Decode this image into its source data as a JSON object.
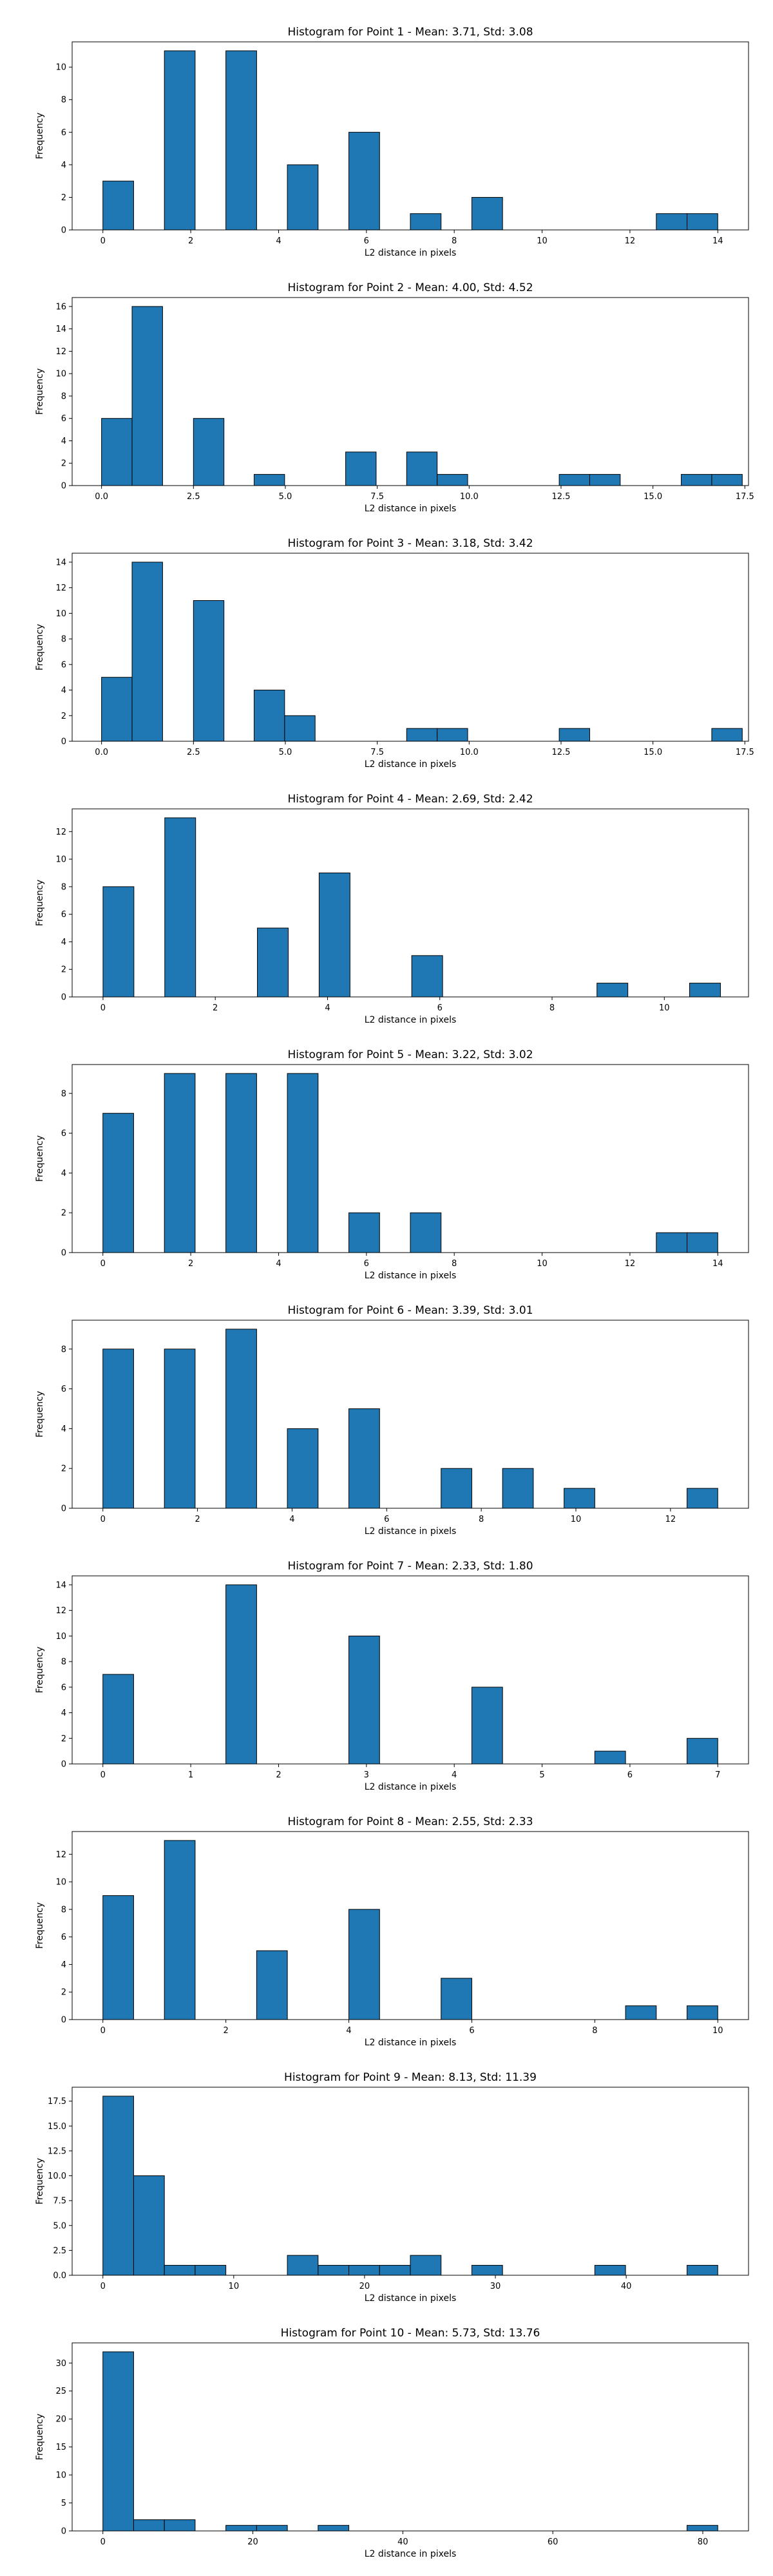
{
  "chart_data": [
    {
      "type": "bar",
      "title": "Histogram for Point 1 - Mean: 3.71, Std: 3.08",
      "xlabel": "L2 distance in pixels",
      "ylabel": "Frequency",
      "xlim": [
        -0.7,
        14.7
      ],
      "ylim": [
        0,
        11.55
      ],
      "xticks": [
        0,
        2,
        4,
        6,
        8,
        10,
        12,
        14
      ],
      "xtick_labels": [
        "0",
        "2",
        "4",
        "6",
        "8",
        "10",
        "12",
        "14"
      ],
      "yticks": [
        0,
        2,
        4,
        6,
        8,
        10
      ],
      "ytick_labels": [
        "0",
        "2",
        "4",
        "6",
        "8",
        "10"
      ],
      "bins": [
        [
          0,
          0.7,
          3
        ],
        [
          1.4,
          2.1,
          11
        ],
        [
          2.8,
          3.5,
          11
        ],
        [
          4.2,
          4.9,
          4
        ],
        [
          5.6,
          6.3,
          6
        ],
        [
          7.0,
          7.7,
          1
        ],
        [
          8.4,
          9.1,
          2
        ],
        [
          12.6,
          13.3,
          1
        ],
        [
          13.3,
          14.0,
          1
        ]
      ]
    },
    {
      "type": "bar",
      "title": "Histogram for Point 2 - Mean: 4.00, Std: 4.52",
      "xlabel": "L2 distance in pixels",
      "ylabel": "Frequency",
      "xlim": [
        -0.8,
        17.6
      ],
      "ylim": [
        0,
        16.8
      ],
      "xticks": [
        0,
        2.5,
        5,
        7.5,
        10,
        12.5,
        15,
        17.5
      ],
      "xtick_labels": [
        "0.0",
        "2.5",
        "5.0",
        "7.5",
        "10.0",
        "12.5",
        "15.0",
        "17.5"
      ],
      "yticks": [
        0,
        2,
        4,
        6,
        8,
        10,
        12,
        14,
        16
      ],
      "ytick_labels": [
        "0",
        "2",
        "4",
        "6",
        "8",
        "10",
        "12",
        "14",
        "16"
      ],
      "bins": [
        [
          0,
          0.83,
          6
        ],
        [
          0.83,
          1.66,
          16
        ],
        [
          2.5,
          3.33,
          6
        ],
        [
          4.15,
          4.98,
          1
        ],
        [
          6.64,
          7.47,
          3
        ],
        [
          8.3,
          9.13,
          3
        ],
        [
          9.13,
          9.96,
          1
        ],
        [
          12.45,
          13.28,
          1
        ],
        [
          13.28,
          14.11,
          1
        ],
        [
          15.77,
          16.6,
          1
        ],
        [
          16.6,
          17.43,
          1
        ]
      ]
    },
    {
      "type": "bar",
      "title": "Histogram for Point 3 - Mean: 3.18, Std: 3.42",
      "xlabel": "L2 distance in pixels",
      "ylabel": "Frequency",
      "xlim": [
        -0.8,
        17.6
      ],
      "ylim": [
        0,
        14.7
      ],
      "xticks": [
        0,
        2.5,
        5,
        7.5,
        10,
        12.5,
        15,
        17.5
      ],
      "xtick_labels": [
        "0.0",
        "2.5",
        "5.0",
        "7.5",
        "10.0",
        "12.5",
        "15.0",
        "17.5"
      ],
      "yticks": [
        0,
        2,
        4,
        6,
        8,
        10,
        12,
        14
      ],
      "ytick_labels": [
        "0",
        "2",
        "4",
        "6",
        "8",
        "10",
        "12",
        "14"
      ],
      "bins": [
        [
          0,
          0.83,
          5
        ],
        [
          0.83,
          1.66,
          14
        ],
        [
          2.5,
          3.33,
          11
        ],
        [
          4.15,
          4.98,
          4
        ],
        [
          4.98,
          5.81,
          2
        ],
        [
          8.3,
          9.13,
          1
        ],
        [
          9.13,
          9.96,
          1
        ],
        [
          12.45,
          13.28,
          1
        ],
        [
          16.6,
          17.43,
          1
        ]
      ]
    },
    {
      "type": "bar",
      "title": "Histogram for Point 4 - Mean: 2.69, Std: 2.42",
      "xlabel": "L2 distance in pixels",
      "ylabel": "Frequency",
      "xlim": [
        -0.55,
        11.5
      ],
      "ylim": [
        0,
        13.65
      ],
      "xticks": [
        0,
        2,
        4,
        6,
        8,
        10
      ],
      "xtick_labels": [
        "0",
        "2",
        "4",
        "6",
        "8",
        "10"
      ],
      "yticks": [
        0,
        2,
        4,
        6,
        8,
        10,
        12
      ],
      "ytick_labels": [
        "0",
        "2",
        "4",
        "6",
        "8",
        "10",
        "12"
      ],
      "bins": [
        [
          0,
          0.55,
          8
        ],
        [
          1.1,
          1.65,
          13
        ],
        [
          2.75,
          3.3,
          5
        ],
        [
          3.85,
          4.4,
          9
        ],
        [
          5.5,
          6.05,
          3
        ],
        [
          8.8,
          9.35,
          1
        ],
        [
          10.45,
          11.0,
          1
        ]
      ]
    },
    {
      "type": "bar",
      "title": "Histogram for Point 5 - Mean: 3.22, Std: 3.02",
      "xlabel": "L2 distance in pixels",
      "ylabel": "Frequency",
      "xlim": [
        -0.7,
        14.7
      ],
      "ylim": [
        0,
        9.45
      ],
      "xticks": [
        0,
        2,
        4,
        6,
        8,
        10,
        12,
        14
      ],
      "xtick_labels": [
        "0",
        "2",
        "4",
        "6",
        "8",
        "10",
        "12",
        "14"
      ],
      "yticks": [
        0,
        2,
        4,
        6,
        8
      ],
      "ytick_labels": [
        "0",
        "2",
        "4",
        "6",
        "8"
      ],
      "bins": [
        [
          0,
          0.7,
          7
        ],
        [
          1.4,
          2.1,
          9
        ],
        [
          2.8,
          3.5,
          9
        ],
        [
          4.2,
          4.9,
          9
        ],
        [
          5.6,
          6.3,
          2
        ],
        [
          7.0,
          7.7,
          2
        ],
        [
          12.6,
          13.3,
          1
        ],
        [
          13.3,
          14.0,
          1
        ]
      ]
    },
    {
      "type": "bar",
      "title": "Histogram for Point 6 - Mean: 3.39, Std: 3.01",
      "xlabel": "L2 distance in pixels",
      "ylabel": "Frequency",
      "xlim": [
        -0.65,
        13.65
      ],
      "ylim": [
        0,
        9.45
      ],
      "xticks": [
        0,
        2,
        4,
        6,
        8,
        10,
        12
      ],
      "xtick_labels": [
        "0",
        "2",
        "4",
        "6",
        "8",
        "10",
        "12"
      ],
      "yticks": [
        0,
        2,
        4,
        6,
        8
      ],
      "ytick_labels": [
        "0",
        "2",
        "4",
        "6",
        "8"
      ],
      "bins": [
        [
          0,
          0.65,
          8
        ],
        [
          1.3,
          1.95,
          8
        ],
        [
          2.6,
          3.25,
          9
        ],
        [
          3.9,
          4.55,
          4
        ],
        [
          5.2,
          5.85,
          5
        ],
        [
          7.15,
          7.8,
          2
        ],
        [
          8.45,
          9.1,
          2
        ],
        [
          9.75,
          10.4,
          1
        ],
        [
          12.35,
          13.0,
          1
        ]
      ]
    },
    {
      "type": "bar",
      "title": "Histogram for Point 7 - Mean: 2.33, Std: 1.80",
      "xlabel": "L2 distance in pixels",
      "ylabel": "Frequency",
      "xlim": [
        -0.35,
        7.35
      ],
      "ylim": [
        0,
        14.7
      ],
      "xticks": [
        0,
        1,
        2,
        3,
        4,
        5,
        6,
        7
      ],
      "xtick_labels": [
        "0",
        "1",
        "2",
        "3",
        "4",
        "5",
        "6",
        "7"
      ],
      "yticks": [
        0,
        2,
        4,
        6,
        8,
        10,
        12,
        14
      ],
      "ytick_labels": [
        "0",
        "2",
        "4",
        "6",
        "8",
        "10",
        "12",
        "14"
      ],
      "bins": [
        [
          0,
          0.35,
          7
        ],
        [
          1.4,
          1.75,
          14
        ],
        [
          2.8,
          3.15,
          10
        ],
        [
          4.2,
          4.55,
          6
        ],
        [
          5.6,
          5.95,
          1
        ],
        [
          6.65,
          7.0,
          2
        ]
      ]
    },
    {
      "type": "bar",
      "title": "Histogram for Point 8 - Mean: 2.55, Std: 2.33",
      "xlabel": "L2 distance in pixels",
      "ylabel": "Frequency",
      "xlim": [
        -0.5,
        10.5
      ],
      "ylim": [
        0,
        13.65
      ],
      "xticks": [
        0,
        2,
        4,
        6,
        8,
        10
      ],
      "xtick_labels": [
        "0",
        "2",
        "4",
        "6",
        "8",
        "10"
      ],
      "yticks": [
        0,
        2,
        4,
        6,
        8,
        10,
        12
      ],
      "ytick_labels": [
        "0",
        "2",
        "4",
        "6",
        "8",
        "10",
        "12"
      ],
      "bins": [
        [
          0,
          0.5,
          9
        ],
        [
          1.0,
          1.5,
          13
        ],
        [
          2.5,
          3.0,
          5
        ],
        [
          4.0,
          4.5,
          8
        ],
        [
          5.5,
          6.0,
          3
        ],
        [
          8.5,
          9.0,
          1
        ],
        [
          9.5,
          10.0,
          1
        ]
      ]
    },
    {
      "type": "bar",
      "title": "Histogram for Point 9 - Mean: 8.13, Std: 11.39",
      "xlabel": "L2 distance in pixels",
      "ylabel": "Frequency",
      "xlim": [
        -2.35,
        49.35
      ],
      "ylim": [
        0,
        18.9
      ],
      "xticks": [
        0,
        10,
        20,
        30,
        40
      ],
      "xtick_labels": [
        "0",
        "10",
        "20",
        "30",
        "40"
      ],
      "yticks": [
        0,
        2.5,
        5,
        7.5,
        10,
        12.5,
        15,
        17.5
      ],
      "ytick_labels": [
        "0.0",
        "2.5",
        "5.0",
        "7.5",
        "10.0",
        "12.5",
        "15.0",
        "17.5"
      ],
      "bins": [
        [
          0,
          2.35,
          18
        ],
        [
          2.35,
          4.7,
          10
        ],
        [
          4.7,
          7.05,
          1
        ],
        [
          7.05,
          9.4,
          1
        ],
        [
          14.1,
          16.45,
          2
        ],
        [
          16.45,
          18.8,
          1
        ],
        [
          18.8,
          21.15,
          1
        ],
        [
          21.15,
          23.5,
          1
        ],
        [
          23.5,
          25.85,
          2
        ],
        [
          28.2,
          30.55,
          1
        ],
        [
          37.6,
          39.95,
          1
        ],
        [
          44.65,
          47.0,
          1
        ]
      ]
    },
    {
      "type": "bar",
      "title": "Histogram for Point 10 - Mean: 5.73, Std: 13.76",
      "xlabel": "L2 distance in pixels",
      "ylabel": "Frequency",
      "xlim": [
        -4.1,
        86.1
      ],
      "ylim": [
        0,
        33.6
      ],
      "xticks": [
        0,
        20,
        40,
        60,
        80
      ],
      "xtick_labels": [
        "0",
        "20",
        "40",
        "60",
        "80"
      ],
      "yticks": [
        0,
        5,
        10,
        15,
        20,
        25,
        30
      ],
      "ytick_labels": [
        "0",
        "5",
        "10",
        "15",
        "20",
        "25",
        "30"
      ],
      "bins": [
        [
          0,
          4.1,
          32
        ],
        [
          4.1,
          8.2,
          2
        ],
        [
          8.2,
          12.3,
          2
        ],
        [
          16.4,
          20.5,
          1
        ],
        [
          20.5,
          24.6,
          1
        ],
        [
          28.7,
          32.8,
          1
        ],
        [
          77.9,
          82.0,
          1
        ]
      ]
    }
  ]
}
